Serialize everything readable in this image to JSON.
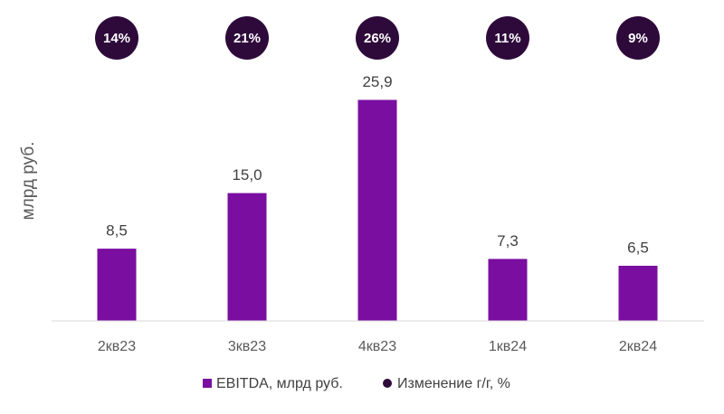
{
  "chart_data": {
    "type": "bar",
    "ylabel": "млрд руб.",
    "categories": [
      "2кв23",
      "3кв23",
      "4кв23",
      "1кв24",
      "2кв24"
    ],
    "series": [
      {
        "name": "EBITDA, млрд руб.",
        "values": [
          8.5,
          15.0,
          25.9,
          7.3,
          6.5
        ],
        "labels": [
          "8,5",
          "15,0",
          "25,9",
          "7,3",
          "6,5"
        ],
        "color": "#7a0ea0"
      },
      {
        "name": "Изменение г/г, %",
        "labels": [
          "14%",
          "21%",
          "26%",
          "11%",
          "9%"
        ],
        "color": "#2e0a3b"
      }
    ],
    "ylim": [
      0,
      25.9
    ],
    "grid": false,
    "legend": "bottom"
  }
}
